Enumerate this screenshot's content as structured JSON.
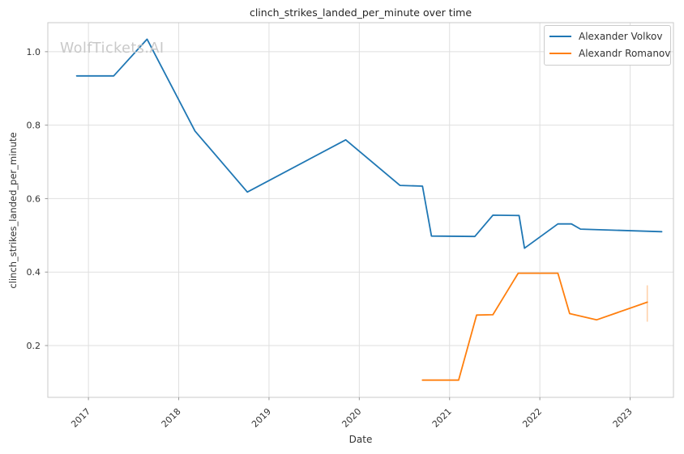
{
  "figure": {
    "title": "clinch_strikes_landed_per_minute over time",
    "watermark": "WolfTickets.AI"
  },
  "legend": {
    "position": "upper right",
    "items": [
      {
        "label": "Alexander Volkov",
        "color": "#1f77b4"
      },
      {
        "label": "Alexandr Romanov",
        "color": "#ff7f0e"
      }
    ]
  },
  "chart_data": {
    "type": "line",
    "title": "clinch_strikes_landed_per_minute over time",
    "xlabel": "Date",
    "ylabel": "clinch_strikes_landed_per_minute",
    "xlim": [
      2016.55,
      2023.48
    ],
    "ylim": [
      0.059,
      1.079
    ],
    "grid": true,
    "legend_position": "upper right",
    "xticks": [
      {
        "label": "2017",
        "value": 2017
      },
      {
        "label": "2018",
        "value": 2018
      },
      {
        "label": "2019",
        "value": 2019
      },
      {
        "label": "2020",
        "value": 2020
      },
      {
        "label": "2021",
        "value": 2021
      },
      {
        "label": "2022",
        "value": 2022
      },
      {
        "label": "2023",
        "value": 2023
      }
    ],
    "yticks": [
      {
        "label": "0.2",
        "value": 0.2
      },
      {
        "label": "0.4",
        "value": 0.4
      },
      {
        "label": "0.6",
        "value": 0.6
      },
      {
        "label": "0.8",
        "value": 0.8
      },
      {
        "label": "1.0",
        "value": 1.0
      }
    ],
    "series": [
      {
        "name": "Alexander Volkov",
        "color": "#1f77b4",
        "points": [
          [
            2016.87,
            0.934
          ],
          [
            2017.28,
            0.934
          ],
          [
            2017.65,
            1.034
          ],
          [
            2018.18,
            0.784
          ],
          [
            2018.76,
            0.618
          ],
          [
            2019.85,
            0.76
          ],
          [
            2020.45,
            0.636
          ],
          [
            2020.7,
            0.634
          ],
          [
            2020.8,
            0.498
          ],
          [
            2021.28,
            0.497
          ],
          [
            2021.48,
            0.555
          ],
          [
            2021.77,
            0.554
          ],
          [
            2021.83,
            0.465
          ],
          [
            2022.2,
            0.531
          ],
          [
            2022.35,
            0.531
          ],
          [
            2022.45,
            0.517
          ],
          [
            2023.35,
            0.51
          ]
        ]
      },
      {
        "name": "Alexandr Romanov",
        "color": "#ff7f0e",
        "points": [
          [
            2020.7,
            0.106
          ],
          [
            2021.1,
            0.106
          ],
          [
            2021.3,
            0.283
          ],
          [
            2021.48,
            0.284
          ],
          [
            2021.76,
            0.397
          ],
          [
            2022.2,
            0.397
          ],
          [
            2022.33,
            0.287
          ],
          [
            2022.63,
            0.27
          ],
          [
            2023.19,
            0.318
          ]
        ],
        "errorbar": {
          "x": 2023.19,
          "low": 0.265,
          "high": 0.364
        }
      }
    ]
  }
}
